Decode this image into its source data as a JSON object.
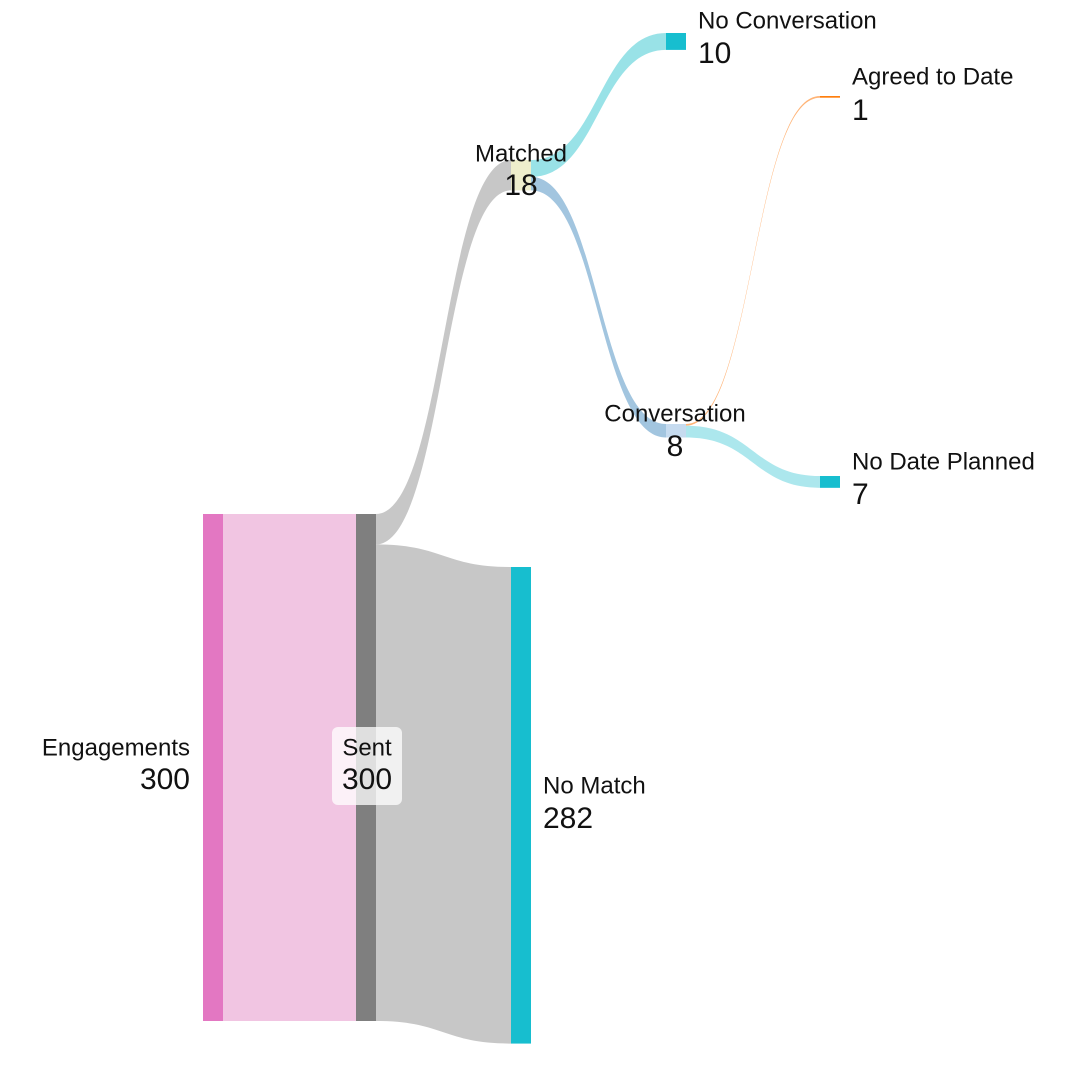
{
  "chart_data": {
    "type": "sankey",
    "nodes": [
      {
        "name": "Engagements",
        "value": 300,
        "color": "#e377c2"
      },
      {
        "name": "Sent",
        "value": 300,
        "color": "#7f7f7f"
      },
      {
        "name": "No Match",
        "value": 282,
        "color": "#17becf"
      },
      {
        "name": "Matched",
        "value": 18,
        "color": "#eeeecc"
      },
      {
        "name": "No Conversation",
        "value": 10,
        "color": "#17becf"
      },
      {
        "name": "Conversation",
        "value": 8,
        "color": "#c6dbef"
      },
      {
        "name": "Agreed to Date",
        "value": 1,
        "color": "#ff7f0e"
      },
      {
        "name": "No Date Planned",
        "value": 7,
        "color": "#17becf"
      }
    ],
    "links": [
      {
        "source": 0,
        "target": 1,
        "value": 300,
        "color": "#f0c2e0"
      },
      {
        "source": 1,
        "target": 3,
        "value": 18,
        "color": "#c4c4c4"
      },
      {
        "source": 1,
        "target": 2,
        "value": 282,
        "color": "#c4c4c4"
      },
      {
        "source": 3,
        "target": 4,
        "value": 10,
        "color": "#94e0e6"
      },
      {
        "source": 3,
        "target": 5,
        "value": 8,
        "color": "#9dc2dd"
      },
      {
        "source": 5,
        "target": 6,
        "value": 1,
        "color": "#ffb070"
      },
      {
        "source": 5,
        "target": 7,
        "value": 7,
        "color": "#a8e6ec"
      }
    ]
  }
}
